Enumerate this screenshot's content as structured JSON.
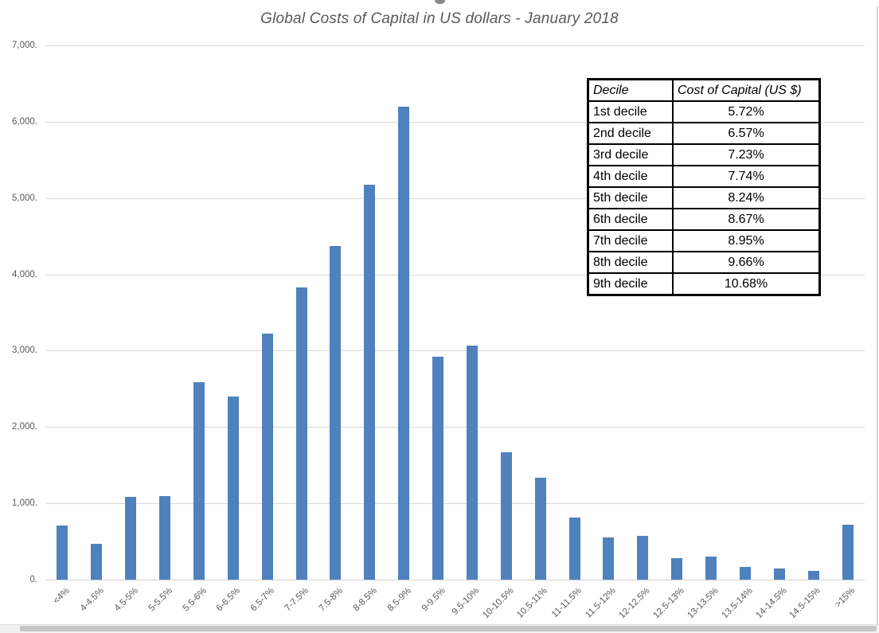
{
  "chart_data": {
    "type": "bar",
    "title": "Global Costs of Capital in US dollars - January 2018",
    "categories": [
      "<4%",
      "4-4.5%",
      "4.5-5%",
      "5-5.5%",
      "5.5-6%",
      "6-6.5%",
      "6.5-7%",
      "7-7.5%",
      "7.5-8%",
      "8-8.5%",
      "8.5-9%",
      "9-9.5%",
      "9.5-10%",
      "10-10.5%",
      "10.5-11%",
      "11-11.5%",
      "11.5-12%",
      "12-12.5%",
      "12.5-13%",
      "13-13.5%",
      "13.5-14%",
      "14-14.5%",
      "14.5-15%",
      ">15%"
    ],
    "values": [
      710,
      470,
      1080,
      1095,
      2590,
      2400,
      3220,
      3830,
      4370,
      5170,
      6200,
      2920,
      3070,
      1670,
      1340,
      810,
      550,
      570,
      280,
      300,
      170,
      145,
      115,
      720
    ],
    "xlabel": "",
    "ylabel": "",
    "ylim": [
      0,
      7000
    ],
    "y_tick_values": [
      7000,
      6000,
      5000,
      4000,
      3000,
      2000,
      1000,
      0
    ],
    "y_tick_labels": [
      "7,000.",
      "6,000.",
      "5,000.",
      "4,000.",
      "3,000.",
      "2,000.",
      "1,000.",
      "0."
    ],
    "grid": true,
    "legend": false,
    "bar_color": "#4F81BD"
  },
  "table": {
    "headers": [
      "Decile",
      "Cost of Capital (US $)"
    ],
    "rows": [
      [
        "1st decile",
        "5.72%"
      ],
      [
        "2nd decile",
        "6.57%"
      ],
      [
        "3rd decile",
        "7.23%"
      ],
      [
        "4th decile",
        "7.74%"
      ],
      [
        "5th decile",
        "8.24%"
      ],
      [
        "6th decile",
        "8.67%"
      ],
      [
        "7th decile",
        "8.95%"
      ],
      [
        "8th decile",
        "9.66%"
      ],
      [
        "9th decile",
        "10.68%"
      ]
    ]
  },
  "colors": {
    "bar": "#4F81BD",
    "axis_text": "#595959",
    "title_text": "#595959",
    "gridline": "#D9D9D9",
    "table_border": "#000000"
  }
}
